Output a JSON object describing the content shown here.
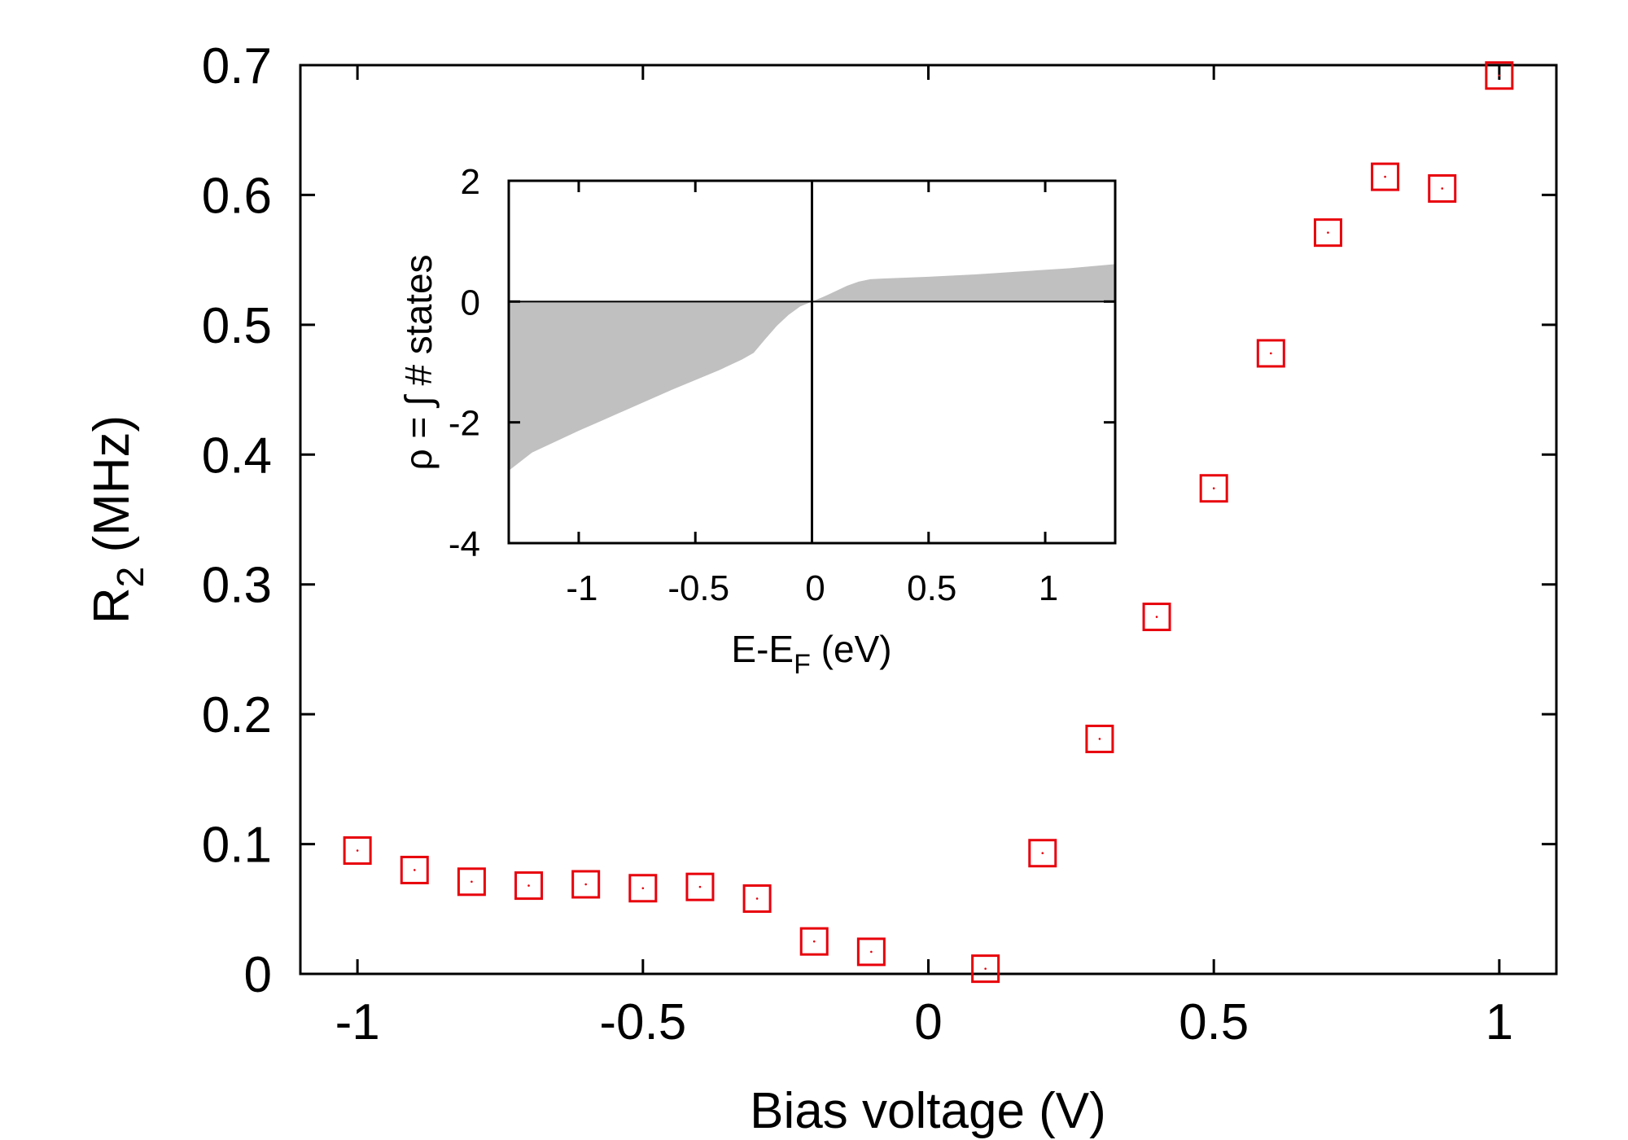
{
  "chart_data": [
    {
      "type": "scatter",
      "title": "",
      "xlabel": "Bias voltage (V)",
      "ylabel_base": "R",
      "ylabel_sub": "2",
      "ylabel_rest": " (MHz)",
      "xlim": [
        -1.1,
        1.1
      ],
      "ylim": [
        0,
        0.7
      ],
      "xticks": [
        -1,
        -0.5,
        0,
        0.5,
        1
      ],
      "xtick_labels": [
        "-1",
        "-0.5",
        "0",
        "0.5",
        "1"
      ],
      "yticks": [
        0,
        0.1,
        0.2,
        0.3,
        0.4,
        0.5,
        0.6,
        0.7
      ],
      "ytick_labels": [
        "0",
        "0.1",
        "0.2",
        "0.3",
        "0.4",
        "0.5",
        "0.6",
        "0.7"
      ],
      "marker": "open-square",
      "color": "#e8000b",
      "series": [
        {
          "name": "R2",
          "x": [
            -1.0,
            -0.9,
            -0.8,
            -0.7,
            -0.6,
            -0.5,
            -0.4,
            -0.3,
            -0.2,
            -0.1,
            0.1,
            0.2,
            0.3,
            0.4,
            0.5,
            0.6,
            0.7,
            0.8,
            0.9,
            1.0
          ],
          "y": [
            0.095,
            0.08,
            0.071,
            0.068,
            0.069,
            0.066,
            0.067,
            0.058,
            0.025,
            0.017,
            0.004,
            0.093,
            0.181,
            0.275,
            0.374,
            0.478,
            0.571,
            0.614,
            0.605,
            0.692
          ]
        }
      ]
    },
    {
      "type": "area",
      "title": "",
      "xlabel_base": "E-E",
      "xlabel_sub": "F",
      "xlabel_rest": " (eV)",
      "ylabel": "ρ = ∫ # states",
      "xlim": [
        -1.3,
        1.3
      ],
      "ylim": [
        -4,
        2
      ],
      "xticks": [
        -1,
        -0.5,
        0,
        0.5,
        1
      ],
      "xtick_labels": [
        "-1",
        "-0.5",
        "0",
        "0.5",
        "1"
      ],
      "yticks": [
        -4,
        -2,
        0,
        2
      ],
      "ytick_labels": [
        "-4",
        "-2",
        "0",
        "2"
      ],
      "fill_color": "#c0c0c0",
      "vertical_line_x": 0,
      "series": [
        {
          "name": "integrated states",
          "x": [
            -1.3,
            -1.2,
            -1.1,
            -1.0,
            -0.9,
            -0.8,
            -0.7,
            -0.6,
            -0.5,
            -0.4,
            -0.3,
            -0.25,
            -0.2,
            -0.15,
            -0.1,
            -0.05,
            0.0,
            0.05,
            0.1,
            0.15,
            0.2,
            0.25,
            0.3,
            0.5,
            0.7,
            0.9,
            1.1,
            1.3
          ],
          "y": [
            -2.8,
            -2.5,
            -2.32,
            -2.14,
            -1.97,
            -1.8,
            -1.63,
            -1.46,
            -1.3,
            -1.14,
            -0.96,
            -0.85,
            -0.62,
            -0.4,
            -0.22,
            -0.08,
            0.0,
            0.08,
            0.17,
            0.26,
            0.33,
            0.37,
            0.38,
            0.41,
            0.45,
            0.5,
            0.55,
            0.62
          ]
        }
      ]
    }
  ]
}
